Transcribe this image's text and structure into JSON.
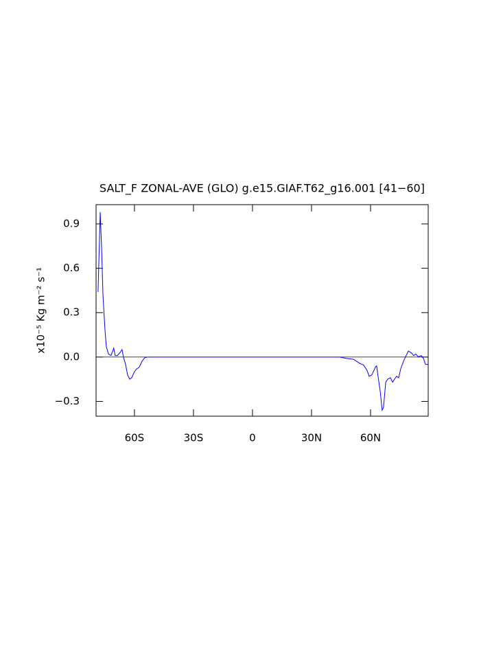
{
  "chart_data": {
    "type": "line",
    "title": "SALT_F ZONAL-AVE (GLO) g.e15.GIAF.T62_g16.001 [41−60]",
    "y_label": "x10⁻⁵ Kg m⁻² s⁻¹",
    "x": [
      -78.5,
      -77.4,
      -76.7,
      -76.0,
      -75.0,
      -74.3,
      -73.2,
      -71.9,
      -70.5,
      -69.8,
      -68.7,
      -67.3,
      -66.3,
      -65.6,
      -64.5,
      -63.5,
      -62.4,
      -61.4,
      -60.0,
      -58.9,
      -57.6,
      -56.2,
      -54.8,
      -53.4,
      0,
      44.3,
      47.8,
      51.3,
      53.0,
      54.8,
      56.5,
      58.2,
      59.3,
      60.7,
      62.4,
      63.1,
      63.8,
      64.9,
      65.9,
      66.6,
      67.7,
      68.7,
      70.1,
      71.2,
      72.2,
      73.2,
      74.3,
      75.3,
      76.7,
      78.1,
      79.2,
      80.6,
      81.9,
      83.0,
      84.4,
      85.8,
      86.9,
      87.9,
      89.3
    ],
    "series": [
      {
        "name": "SALT_F",
        "color": "#0000ff",
        "values": [
          0.44,
          0.98,
          0.74,
          0.42,
          0.19,
          0.07,
          0.02,
          0.01,
          0.06,
          0.01,
          0.01,
          0.03,
          0.05,
          0.0,
          -0.05,
          -0.12,
          -0.15,
          -0.14,
          -0.1,
          -0.08,
          -0.07,
          -0.03,
          -0.005,
          0,
          0,
          0,
          -0.01,
          -0.015,
          -0.03,
          -0.045,
          -0.055,
          -0.09,
          -0.13,
          -0.12,
          -0.07,
          -0.06,
          -0.13,
          -0.23,
          -0.36,
          -0.34,
          -0.17,
          -0.15,
          -0.14,
          -0.17,
          -0.15,
          -0.13,
          -0.14,
          -0.08,
          -0.03,
          0.01,
          0.04,
          0.03,
          0.01,
          0.02,
          0.0,
          0.01,
          -0.01,
          -0.05,
          -0.05
        ]
      }
    ],
    "xlim": [
      -79.5,
      89.3
    ],
    "xticks": [
      {
        "value": -60,
        "label": "60S"
      },
      {
        "value": -30,
        "label": "30S"
      },
      0,
      {
        "value": 30,
        "label": "30N"
      },
      {
        "value": 60,
        "label": "60N"
      }
    ],
    "ylim": [
      -0.4,
      1.03
    ],
    "yticks": [
      {
        "value": -0.3,
        "label": "−0.3"
      },
      {
        "value": 0,
        "label": "0.0"
      },
      0.3,
      0.6,
      0.9
    ],
    "reference_line": 0
  }
}
